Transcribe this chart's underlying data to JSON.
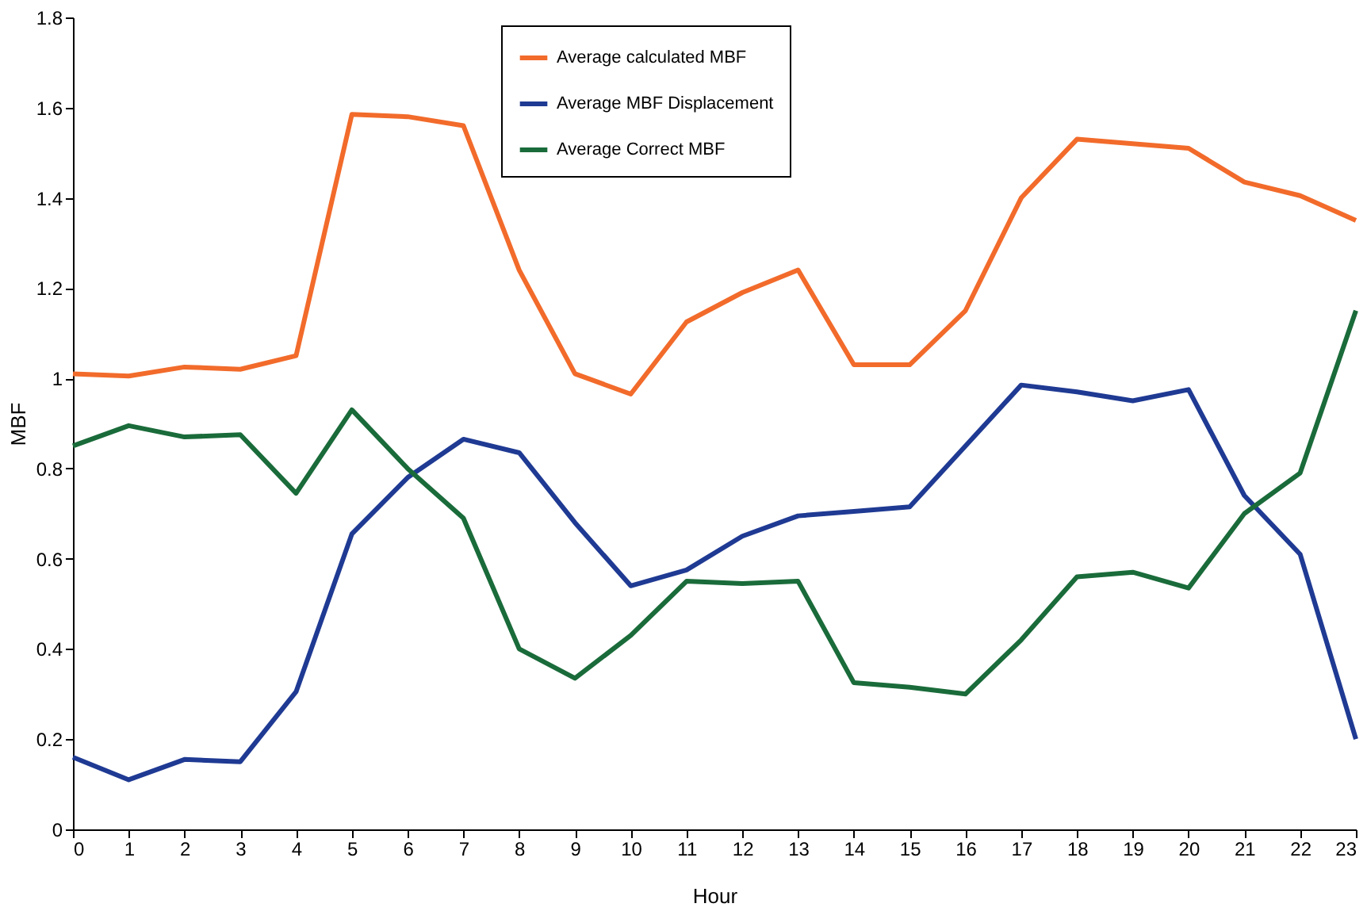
{
  "chart_data": {
    "type": "line",
    "xlabel": "Hour",
    "ylabel": "MBF",
    "x": [
      0,
      1,
      2,
      3,
      4,
      5,
      6,
      7,
      8,
      9,
      10,
      11,
      12,
      13,
      14,
      15,
      16,
      17,
      18,
      19,
      20,
      21,
      22,
      23
    ],
    "series": [
      {
        "name": "Average calculated MBF",
        "color": "#f26b2b",
        "values": [
          1.01,
          1.005,
          1.025,
          1.02,
          1.05,
          1.585,
          1.58,
          1.56,
          1.24,
          1.01,
          0.965,
          1.125,
          1.19,
          1.24,
          1.03,
          1.03,
          1.15,
          1.4,
          1.53,
          1.52,
          1.51,
          1.435,
          1.405,
          1.35
        ]
      },
      {
        "name": "Average MBF Displacement",
        "color": "#1f3a93",
        "values": [
          0.16,
          0.11,
          0.155,
          0.15,
          0.305,
          0.655,
          0.78,
          0.865,
          0.835,
          0.68,
          0.54,
          0.575,
          0.65,
          0.695,
          0.705,
          0.715,
          0.85,
          0.985,
          0.97,
          0.95,
          0.975,
          0.74,
          0.61,
          0.2
        ]
      },
      {
        "name": "Average Correct MBF",
        "color": "#1a6b3a",
        "values": [
          0.85,
          0.895,
          0.87,
          0.875,
          0.745,
          0.93,
          0.8,
          0.69,
          0.4,
          0.335,
          0.43,
          0.55,
          0.545,
          0.55,
          0.325,
          0.315,
          0.3,
          0.42,
          0.56,
          0.57,
          0.535,
          0.7,
          0.79,
          1.15
        ]
      }
    ],
    "xlim": [
      0,
      23
    ],
    "xticks": [
      0,
      1,
      2,
      3,
      4,
      5,
      6,
      7,
      8,
      9,
      10,
      11,
      12,
      13,
      14,
      15,
      16,
      17,
      18,
      19,
      20,
      21,
      22,
      23
    ],
    "ylim": [
      0,
      1.8
    ],
    "yticks": [
      0,
      0.2,
      0.4,
      0.6,
      0.8,
      1,
      1.2,
      1.4,
      1.6,
      1.8
    ],
    "grid": false,
    "legend": "top",
    "marker": "none",
    "line_style": "solid"
  }
}
